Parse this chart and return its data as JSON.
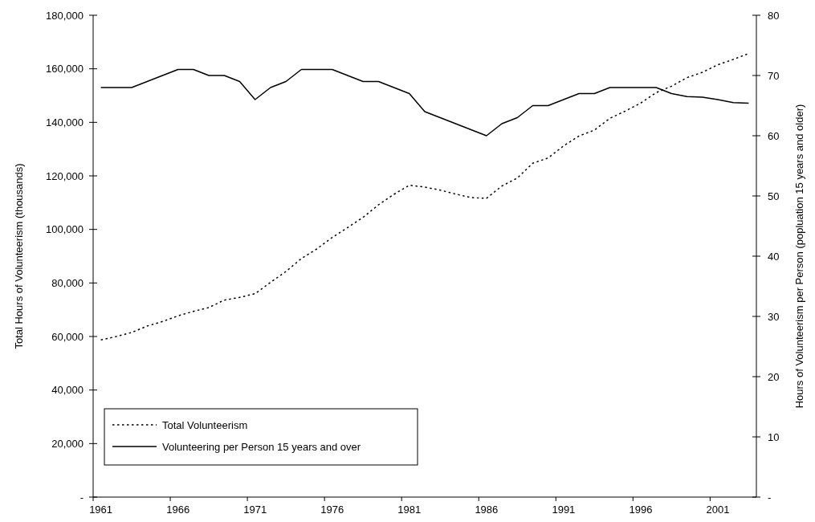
{
  "chart_data": {
    "type": "line",
    "xlabel": null,
    "ylabel": "Total Hours of Volunteerism (thousands)",
    "y2label": "Hours of Volunteerism per Person (popluation 15 years and older)",
    "categories": [
      "1961",
      null,
      null,
      null,
      null,
      "1966",
      null,
      null,
      null,
      null,
      "1971",
      null,
      null,
      null,
      null,
      "1976",
      null,
      null,
      null,
      null,
      "1981",
      null,
      null,
      null,
      null,
      "1986",
      null,
      null,
      null,
      null,
      "1991",
      null,
      null,
      null,
      null,
      "1996",
      null,
      null,
      null,
      null,
      "2001",
      null,
      null
    ],
    "series": [
      {
        "name": "Total Volunteerism",
        "color": "#000000",
        "line_style": "dotted",
        "values": [
          58700,
          60000,
          61500,
          63900,
          65600,
          67700,
          69400,
          70800,
          73600,
          74600,
          76000,
          80200,
          84300,
          89100,
          92700,
          97000,
          100700,
          104500,
          109200,
          113100,
          116500,
          115800,
          114700,
          113200,
          111900,
          111600,
          116200,
          119200,
          124700,
          126700,
          131200,
          134900,
          137100,
          141500,
          144200,
          147200,
          151100,
          153500,
          156700,
          158700,
          161500,
          163500,
          165700
        ]
      },
      {
        "name": "Volunteering per Person 15 years and over",
        "color": "#000000",
        "line_style": "solid",
        "axis": "y2",
        "values": [
          68,
          68,
          68,
          69,
          70,
          71,
          71,
          70,
          70,
          69,
          66,
          68,
          69,
          71,
          71,
          71,
          70,
          69,
          69,
          68,
          67,
          64,
          63,
          62,
          61,
          60,
          62,
          63,
          65,
          65,
          66,
          67,
          67,
          68,
          68,
          68,
          68,
          67,
          66.5,
          66.4,
          66,
          65.5,
          65.4
        ]
      }
    ],
    "ylim": [
      0,
      180000
    ],
    "yticks": [
      {
        "value": 0,
        "label": "-"
      },
      {
        "value": 20000,
        "label": "20,000"
      },
      {
        "value": 40000,
        "label": "40,000"
      },
      {
        "value": 60000,
        "label": "60,000"
      },
      {
        "value": 80000,
        "label": "80,000"
      },
      {
        "value": 100000,
        "label": "100,000"
      },
      {
        "value": 120000,
        "label": "120,000"
      },
      {
        "value": 140000,
        "label": "140,000"
      },
      {
        "value": 160000,
        "label": "160,000"
      },
      {
        "value": 180000,
        "label": "180,000"
      }
    ],
    "y2lim": [
      0,
      80
    ],
    "y2ticks": [
      {
        "value": 0,
        "label": "-"
      },
      10,
      20,
      30,
      40,
      50,
      60,
      70,
      80
    ],
    "legend": "bottom left",
    "grid": false,
    "marker": "none"
  }
}
